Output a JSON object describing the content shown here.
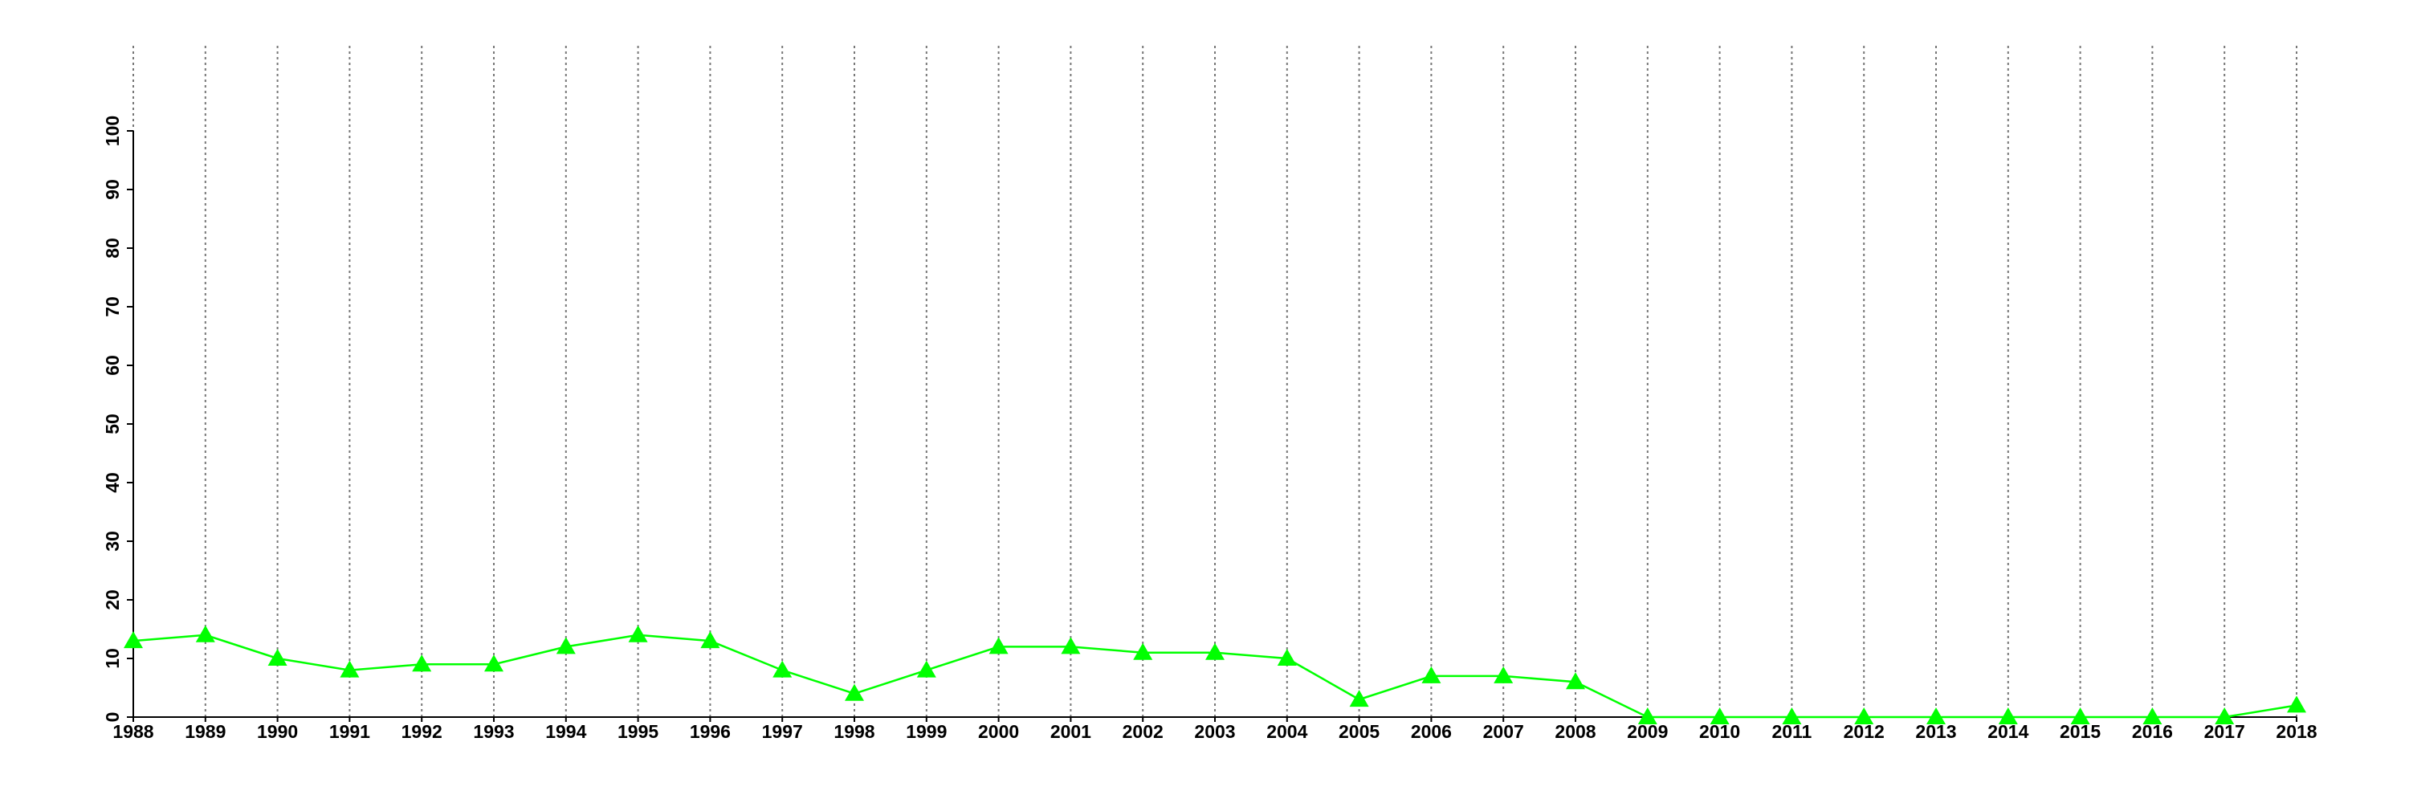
{
  "chart_data": {
    "type": "line",
    "categories": [
      "1988",
      "1989",
      "1990",
      "1991",
      "1992",
      "1993",
      "1994",
      "1995",
      "1996",
      "1997",
      "1998",
      "1999",
      "2000",
      "2001",
      "2002",
      "2003",
      "2004",
      "2005",
      "2006",
      "2007",
      "2008",
      "2009",
      "2010",
      "2011",
      "2012",
      "2013",
      "2014",
      "2015",
      "2016",
      "2017",
      "2018"
    ],
    "series": [
      {
        "color": "#00ff00",
        "marker": "triangle",
        "values": [
          13,
          14,
          10,
          8,
          9,
          9,
          12,
          14,
          13,
          8,
          4,
          8,
          12,
          12,
          11,
          11,
          10,
          3,
          7,
          7,
          6,
          0,
          0,
          0,
          0,
          0,
          0,
          0,
          0,
          0,
          2
        ]
      }
    ],
    "ylim": [
      0,
      100
    ],
    "yticks": [
      0,
      10,
      20,
      30,
      40,
      50,
      60,
      70,
      80,
      90,
      100
    ],
    "grid": "x"
  }
}
